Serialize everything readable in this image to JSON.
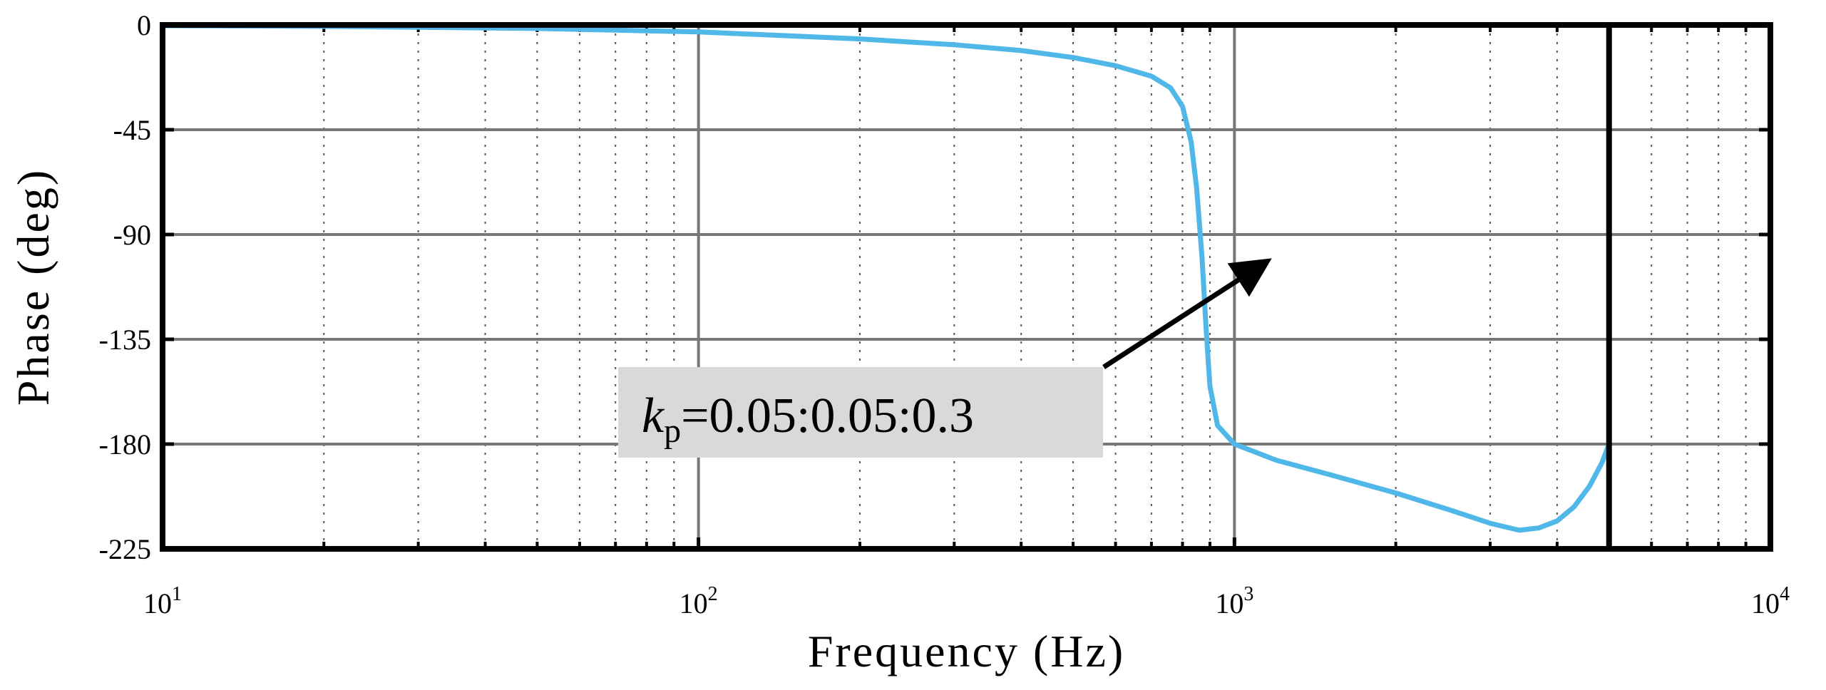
{
  "chart_data": {
    "type": "line",
    "title": "",
    "xlabel": "Frequency  (Hz)",
    "ylabel": "Phase (deg)",
    "x_scale": "log",
    "xlim": [
      10,
      10000
    ],
    "ylim": [
      -225,
      0
    ],
    "grid": true,
    "x_major_ticks": [
      {
        "value": 10,
        "base": "10",
        "exp": "1"
      },
      {
        "value": 100,
        "base": "10",
        "exp": "2"
      },
      {
        "value": 1000,
        "base": "10",
        "exp": "3"
      },
      {
        "value": 10000,
        "base": "10",
        "exp": "4"
      }
    ],
    "y_ticks": [
      {
        "value": 0,
        "label": "0"
      },
      {
        "value": -45,
        "label": "-45"
      },
      {
        "value": -90,
        "label": "-90"
      },
      {
        "value": -135,
        "label": "-135"
      },
      {
        "value": -180,
        "label": "-180"
      },
      {
        "value": -225,
        "label": "-225"
      }
    ],
    "vertical_marker": {
      "x": 5000,
      "color": "#000000"
    },
    "series": [
      {
        "name": "phase",
        "color": "#4FB8E8",
        "points": [
          [
            10,
            -0.3
          ],
          [
            20,
            -0.6
          ],
          [
            50,
            -1.5
          ],
          [
            100,
            -3
          ],
          [
            200,
            -6
          ],
          [
            300,
            -8.5
          ],
          [
            400,
            -11
          ],
          [
            500,
            -14
          ],
          [
            600,
            -17.5
          ],
          [
            700,
            -22
          ],
          [
            760,
            -27
          ],
          [
            800,
            -35
          ],
          [
            830,
            -50
          ],
          [
            850,
            -70
          ],
          [
            870,
            -100
          ],
          [
            885,
            -130
          ],
          [
            900,
            -155
          ],
          [
            930,
            -172
          ],
          [
            1000,
            -180
          ],
          [
            1200,
            -187
          ],
          [
            1500,
            -193
          ],
          [
            2000,
            -201
          ],
          [
            2500,
            -208
          ],
          [
            3000,
            -214
          ],
          [
            3400,
            -217
          ],
          [
            3700,
            -216
          ],
          [
            4000,
            -213
          ],
          [
            4300,
            -207
          ],
          [
            4600,
            -198
          ],
          [
            4850,
            -188
          ],
          [
            5000,
            -180
          ]
        ]
      }
    ],
    "annotation": {
      "italic": "k",
      "subscript": "p",
      "rest": "=0.05:0.05:0.3",
      "box_color": "#d9d9d9",
      "arrow_color": "#000000"
    }
  }
}
